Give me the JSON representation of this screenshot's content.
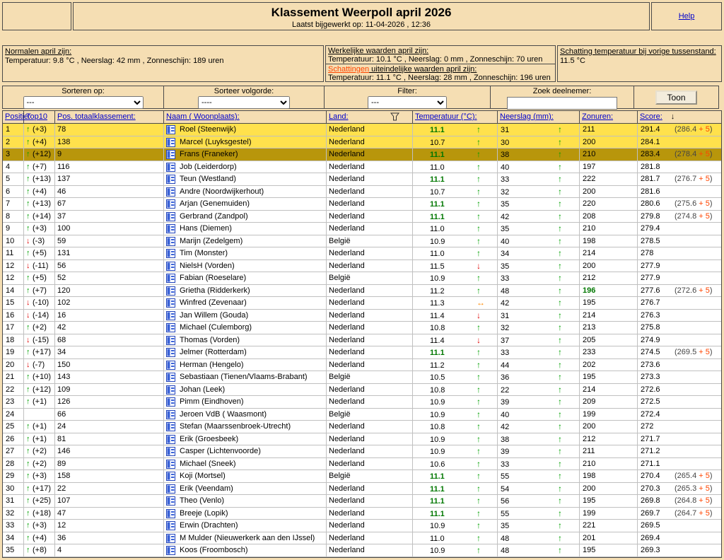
{
  "colors": {
    "link": "#0000cc",
    "schat": "#ff4500",
    "gold": "#ffe14c",
    "bronze": "#b8960b",
    "green_arrow": "#00a000",
    "green_hit": "#007700",
    "red": "#e00000",
    "orange": "#ff8800",
    "bonus": "#ff4400"
  },
  "header": {
    "title": "Klassement Weerpoll april 2026",
    "subtitle": "Laatst bijgewerkt op: 11-04-2026 , 12:36",
    "help_label": "Help"
  },
  "info": {
    "normalen": {
      "heading": "Normalen april zijn:",
      "values": "Temperatuur: 9.8 °C , Neerslag: 42 mm , Zonneschijn: 189 uren"
    },
    "werkelijk": {
      "heading": "Werkelijke waarden april zijn:",
      "values": "Temperatuur: 10.1 °C , Neerslag: 0 mm , Zonneschijn: 70 uren"
    },
    "schattingen": {
      "link": "Schattingen",
      "heading_rest": " uiteindelijke waarden april zijn:",
      "values": "Temperatuur: 11.1 °C , Neerslag: 28 mm , Zonneschijn: 196 uren"
    },
    "vorige": {
      "heading": "Schatting temperatuur bij vorige tussenstand:",
      "value": "11.5 °C"
    }
  },
  "controls": {
    "sort_label": "Sorteren op:",
    "sort_value": "---",
    "order_label": "Sorteer volgorde:",
    "order_value": "----",
    "filter_label": "Filter:",
    "filter_value": "---",
    "search_label": "Zoek deelnemer:",
    "show_button": "Toon"
  },
  "table": {
    "headers": {
      "positie": "Positie:",
      "top10": "Top10",
      "tot": "Pos. totaalklassement:",
      "naam": "Naam ( Woonplaats):",
      "land": "Land:",
      "temp": "Temperatuur (°C):",
      "neer": "Neerslag (mm):",
      "zon": "Zonuren:",
      "score": "Score:",
      "sort_arrow": "↓"
    },
    "bonus_suffix": "+ 5",
    "rows": [
      {
        "pos": "1",
        "dir": "up",
        "chg": "(+3)",
        "tot": "78",
        "name": "Roel (Steenwijk)",
        "land": "Nederland",
        "temp": "11.1",
        "thit": true,
        "tt": "up",
        "neer": "31",
        "nt": "up",
        "zon": "211",
        "zhit": false,
        "score": "291.4",
        "bonus": "286.4",
        "hl": "gold"
      },
      {
        "pos": "2",
        "dir": "up",
        "chg": "(+4)",
        "tot": "138",
        "name": "Marcel (Luyksgestel)",
        "land": "Nederland",
        "temp": "10.7",
        "thit": false,
        "tt": "up",
        "neer": "30",
        "nt": "up",
        "zon": "200",
        "zhit": false,
        "score": "284.1",
        "bonus": "",
        "hl": "gold"
      },
      {
        "pos": "3",
        "dir": "up",
        "chg": "(+12)",
        "tot": "9",
        "name": "Frans (Franeker)",
        "land": "Nederland",
        "temp": "11.1",
        "thit": true,
        "tt": "up",
        "neer": "38",
        "nt": "up",
        "zon": "210",
        "zhit": false,
        "score": "283.4",
        "bonus": "278.4",
        "hl": "bronze"
      },
      {
        "pos": "4",
        "dir": "up",
        "chg": "(+7)",
        "tot": "116",
        "name": "Job (Leiderdorp)",
        "land": "Nederland",
        "temp": "11.0",
        "thit": false,
        "tt": "up",
        "neer": "40",
        "nt": "up",
        "zon": "197",
        "zhit": false,
        "score": "281.8",
        "bonus": "",
        "hl": ""
      },
      {
        "pos": "5",
        "dir": "up",
        "chg": "(+13)",
        "tot": "137",
        "name": "Teun (Westland)",
        "land": "Nederland",
        "temp": "11.1",
        "thit": true,
        "tt": "up",
        "neer": "33",
        "nt": "up",
        "zon": "222",
        "zhit": false,
        "score": "281.7",
        "bonus": "276.7",
        "hl": ""
      },
      {
        "pos": "6",
        "dir": "up",
        "chg": "(+4)",
        "tot": "46",
        "name": "Andre (Noordwijkerhout)",
        "land": "Nederland",
        "temp": "10.7",
        "thit": false,
        "tt": "up",
        "neer": "32",
        "nt": "up",
        "zon": "200",
        "zhit": false,
        "score": "281.6",
        "bonus": "",
        "hl": ""
      },
      {
        "pos": "7",
        "dir": "up",
        "chg": "(+13)",
        "tot": "67",
        "name": "Arjan (Genemuiden)",
        "land": "Nederland",
        "temp": "11.1",
        "thit": true,
        "tt": "up",
        "neer": "35",
        "nt": "up",
        "zon": "220",
        "zhit": false,
        "score": "280.6",
        "bonus": "275.6",
        "hl": ""
      },
      {
        "pos": "8",
        "dir": "up",
        "chg": "(+14)",
        "tot": "37",
        "name": "Gerbrand (Zandpol)",
        "land": "Nederland",
        "temp": "11.1",
        "thit": true,
        "tt": "up",
        "neer": "42",
        "nt": "up",
        "zon": "208",
        "zhit": false,
        "score": "279.8",
        "bonus": "274.8",
        "hl": ""
      },
      {
        "pos": "9",
        "dir": "up",
        "chg": "(+3)",
        "tot": "100",
        "name": "Hans (Diemen)",
        "land": "Nederland",
        "temp": "11.0",
        "thit": false,
        "tt": "up",
        "neer": "35",
        "nt": "up",
        "zon": "210",
        "zhit": false,
        "score": "279.4",
        "bonus": "",
        "hl": ""
      },
      {
        "pos": "10",
        "dir": "down",
        "chg": "(-3)",
        "tot": "59",
        "name": "Marijn (Zedelgem)",
        "land": "België",
        "temp": "10.9",
        "thit": false,
        "tt": "up",
        "neer": "40",
        "nt": "up",
        "zon": "198",
        "zhit": false,
        "score": "278.5",
        "bonus": "",
        "hl": ""
      },
      {
        "pos": "11",
        "dir": "up",
        "chg": "(+5)",
        "tot": "131",
        "name": "Tim (Monster)",
        "land": "Nederland",
        "temp": "11.0",
        "thit": false,
        "tt": "up",
        "neer": "34",
        "nt": "up",
        "zon": "214",
        "zhit": false,
        "score": "278",
        "bonus": "",
        "hl": ""
      },
      {
        "pos": "12",
        "dir": "down",
        "chg": "(-11)",
        "tot": "56",
        "name": "NielsH (Vorden)",
        "land": "Nederland",
        "temp": "11.5",
        "thit": false,
        "tt": "down",
        "neer": "35",
        "nt": "up",
        "zon": "200",
        "zhit": false,
        "score": "277.9",
        "bonus": "",
        "hl": ""
      },
      {
        "pos": "12",
        "dir": "up",
        "chg": "(+5)",
        "tot": "52",
        "name": "Fabian (Roeselare)",
        "land": "België",
        "temp": "10.9",
        "thit": false,
        "tt": "up",
        "neer": "33",
        "nt": "up",
        "zon": "212",
        "zhit": false,
        "score": "277.9",
        "bonus": "",
        "hl": ""
      },
      {
        "pos": "14",
        "dir": "up",
        "chg": "(+7)",
        "tot": "120",
        "name": "Grietha (Ridderkerk)",
        "land": "Nederland",
        "temp": "11.2",
        "thit": false,
        "tt": "up",
        "neer": "48",
        "nt": "up",
        "zon": "196",
        "zhit": true,
        "score": "277.6",
        "bonus": "272.6",
        "hl": ""
      },
      {
        "pos": "15",
        "dir": "down",
        "chg": "(-10)",
        "tot": "102",
        "name": "Winfred (Zevenaar)",
        "land": "Nederland",
        "temp": "11.3",
        "thit": false,
        "tt": "flat",
        "neer": "42",
        "nt": "up",
        "zon": "195",
        "zhit": false,
        "score": "276.7",
        "bonus": "",
        "hl": ""
      },
      {
        "pos": "16",
        "dir": "down",
        "chg": "(-14)",
        "tot": "16",
        "name": "Jan Willem (Gouda)",
        "land": "Nederland",
        "temp": "11.4",
        "thit": false,
        "tt": "down",
        "neer": "31",
        "nt": "up",
        "zon": "214",
        "zhit": false,
        "score": "276.3",
        "bonus": "",
        "hl": ""
      },
      {
        "pos": "17",
        "dir": "up",
        "chg": "(+2)",
        "tot": "42",
        "name": "Michael (Culemborg)",
        "land": "Nederland",
        "temp": "10.8",
        "thit": false,
        "tt": "up",
        "neer": "32",
        "nt": "up",
        "zon": "213",
        "zhit": false,
        "score": "275.8",
        "bonus": "",
        "hl": ""
      },
      {
        "pos": "18",
        "dir": "down",
        "chg": "(-15)",
        "tot": "68",
        "name": "Thomas (Vorden)",
        "land": "Nederland",
        "temp": "11.4",
        "thit": false,
        "tt": "down",
        "neer": "37",
        "nt": "up",
        "zon": "205",
        "zhit": false,
        "score": "274.9",
        "bonus": "",
        "hl": ""
      },
      {
        "pos": "19",
        "dir": "up",
        "chg": "(+17)",
        "tot": "34",
        "name": "Jelmer (Rotterdam)",
        "land": "Nederland",
        "temp": "11.1",
        "thit": true,
        "tt": "up",
        "neer": "33",
        "nt": "up",
        "zon": "233",
        "zhit": false,
        "score": "274.5",
        "bonus": "269.5",
        "hl": ""
      },
      {
        "pos": "20",
        "dir": "down",
        "chg": "(-7)",
        "tot": "150",
        "name": "Herman (Hengelo)",
        "land": "Nederland",
        "temp": "11.2",
        "thit": false,
        "tt": "up",
        "neer": "44",
        "nt": "up",
        "zon": "202",
        "zhit": false,
        "score": "273.6",
        "bonus": "",
        "hl": ""
      },
      {
        "pos": "21",
        "dir": "up",
        "chg": "(+10)",
        "tot": "143",
        "name": "Sebastiaan (Tienen/Vlaams-Brabant)",
        "land": "België",
        "temp": "10.5",
        "thit": false,
        "tt": "up",
        "neer": "36",
        "nt": "up",
        "zon": "195",
        "zhit": false,
        "score": "273.3",
        "bonus": "",
        "hl": ""
      },
      {
        "pos": "22",
        "dir": "up",
        "chg": "(+12)",
        "tot": "109",
        "name": "Johan (Leek)",
        "land": "Nederland",
        "temp": "10.8",
        "thit": false,
        "tt": "up",
        "neer": "22",
        "nt": "up",
        "zon": "214",
        "zhit": false,
        "score": "272.6",
        "bonus": "",
        "hl": ""
      },
      {
        "pos": "23",
        "dir": "up",
        "chg": "(+1)",
        "tot": "126",
        "name": "Pimm (Eindhoven)",
        "land": "Nederland",
        "temp": "10.9",
        "thit": false,
        "tt": "up",
        "neer": "39",
        "nt": "up",
        "zon": "209",
        "zhit": false,
        "score": "272.5",
        "bonus": "",
        "hl": ""
      },
      {
        "pos": "24",
        "dir": "",
        "chg": "",
        "tot": "66",
        "name": "Jeroen VdB ( Waasmont)",
        "land": "België",
        "temp": "10.9",
        "thit": false,
        "tt": "up",
        "neer": "40",
        "nt": "up",
        "zon": "199",
        "zhit": false,
        "score": "272.4",
        "bonus": "",
        "hl": ""
      },
      {
        "pos": "25",
        "dir": "up",
        "chg": "(+1)",
        "tot": "24",
        "name": "Stefan (Maarssenbroek-Utrecht)",
        "land": "Nederland",
        "temp": "10.8",
        "thit": false,
        "tt": "up",
        "neer": "42",
        "nt": "up",
        "zon": "200",
        "zhit": false,
        "score": "272",
        "bonus": "",
        "hl": ""
      },
      {
        "pos": "26",
        "dir": "up",
        "chg": "(+1)",
        "tot": "81",
        "name": "Erik (Groesbeek)",
        "land": "Nederland",
        "temp": "10.9",
        "thit": false,
        "tt": "up",
        "neer": "38",
        "nt": "up",
        "zon": "212",
        "zhit": false,
        "score": "271.7",
        "bonus": "",
        "hl": ""
      },
      {
        "pos": "27",
        "dir": "up",
        "chg": "(+2)",
        "tot": "146",
        "name": "Casper (Lichtenvoorde)",
        "land": "Nederland",
        "temp": "10.9",
        "thit": false,
        "tt": "up",
        "neer": "39",
        "nt": "up",
        "zon": "211",
        "zhit": false,
        "score": "271.2",
        "bonus": "",
        "hl": ""
      },
      {
        "pos": "28",
        "dir": "up",
        "chg": "(+2)",
        "tot": "89",
        "name": "Michael (Sneek)",
        "land": "Nederland",
        "temp": "10.6",
        "thit": false,
        "tt": "up",
        "neer": "33",
        "nt": "up",
        "zon": "210",
        "zhit": false,
        "score": "271.1",
        "bonus": "",
        "hl": ""
      },
      {
        "pos": "29",
        "dir": "up",
        "chg": "(+3)",
        "tot": "158",
        "name": "Koji (Mortsel)",
        "land": "België",
        "temp": "11.1",
        "thit": true,
        "tt": "up",
        "neer": "55",
        "nt": "up",
        "zon": "198",
        "zhit": false,
        "score": "270.4",
        "bonus": "265.4",
        "hl": ""
      },
      {
        "pos": "30",
        "dir": "up",
        "chg": "(+17)",
        "tot": "22",
        "name": "Erik (Veendam)",
        "land": "Nederland",
        "temp": "11.1",
        "thit": true,
        "tt": "up",
        "neer": "54",
        "nt": "up",
        "zon": "200",
        "zhit": false,
        "score": "270.3",
        "bonus": "265.3",
        "hl": ""
      },
      {
        "pos": "31",
        "dir": "up",
        "chg": "(+25)",
        "tot": "107",
        "name": "Theo (Venlo)",
        "land": "Nederland",
        "temp": "11.1",
        "thit": true,
        "tt": "up",
        "neer": "56",
        "nt": "up",
        "zon": "195",
        "zhit": false,
        "score": "269.8",
        "bonus": "264.8",
        "hl": ""
      },
      {
        "pos": "32",
        "dir": "up",
        "chg": "(+18)",
        "tot": "47",
        "name": "Breeje (Lopik)",
        "land": "Nederland",
        "temp": "11.1",
        "thit": true,
        "tt": "up",
        "neer": "55",
        "nt": "up",
        "zon": "199",
        "zhit": false,
        "score": "269.7",
        "bonus": "264.7",
        "hl": ""
      },
      {
        "pos": "33",
        "dir": "up",
        "chg": "(+3)",
        "tot": "12",
        "name": "Erwin (Drachten)",
        "land": "Nederland",
        "temp": "10.9",
        "thit": false,
        "tt": "up",
        "neer": "35",
        "nt": "up",
        "zon": "221",
        "zhit": false,
        "score": "269.5",
        "bonus": "",
        "hl": ""
      },
      {
        "pos": "34",
        "dir": "up",
        "chg": "(+4)",
        "tot": "36",
        "name": "M Mulder (Nieuwerkerk aan den IJssel)",
        "land": "Nederland",
        "temp": "11.0",
        "thit": false,
        "tt": "up",
        "neer": "48",
        "nt": "up",
        "zon": "201",
        "zhit": false,
        "score": "269.4",
        "bonus": "",
        "hl": ""
      },
      {
        "pos": "35",
        "dir": "up",
        "chg": "(+8)",
        "tot": "4",
        "name": "Koos (Froombosch)",
        "land": "Nederland",
        "temp": "10.9",
        "thit": false,
        "tt": "up",
        "neer": "48",
        "nt": "up",
        "zon": "195",
        "zhit": false,
        "score": "269.3",
        "bonus": "",
        "hl": ""
      }
    ]
  }
}
